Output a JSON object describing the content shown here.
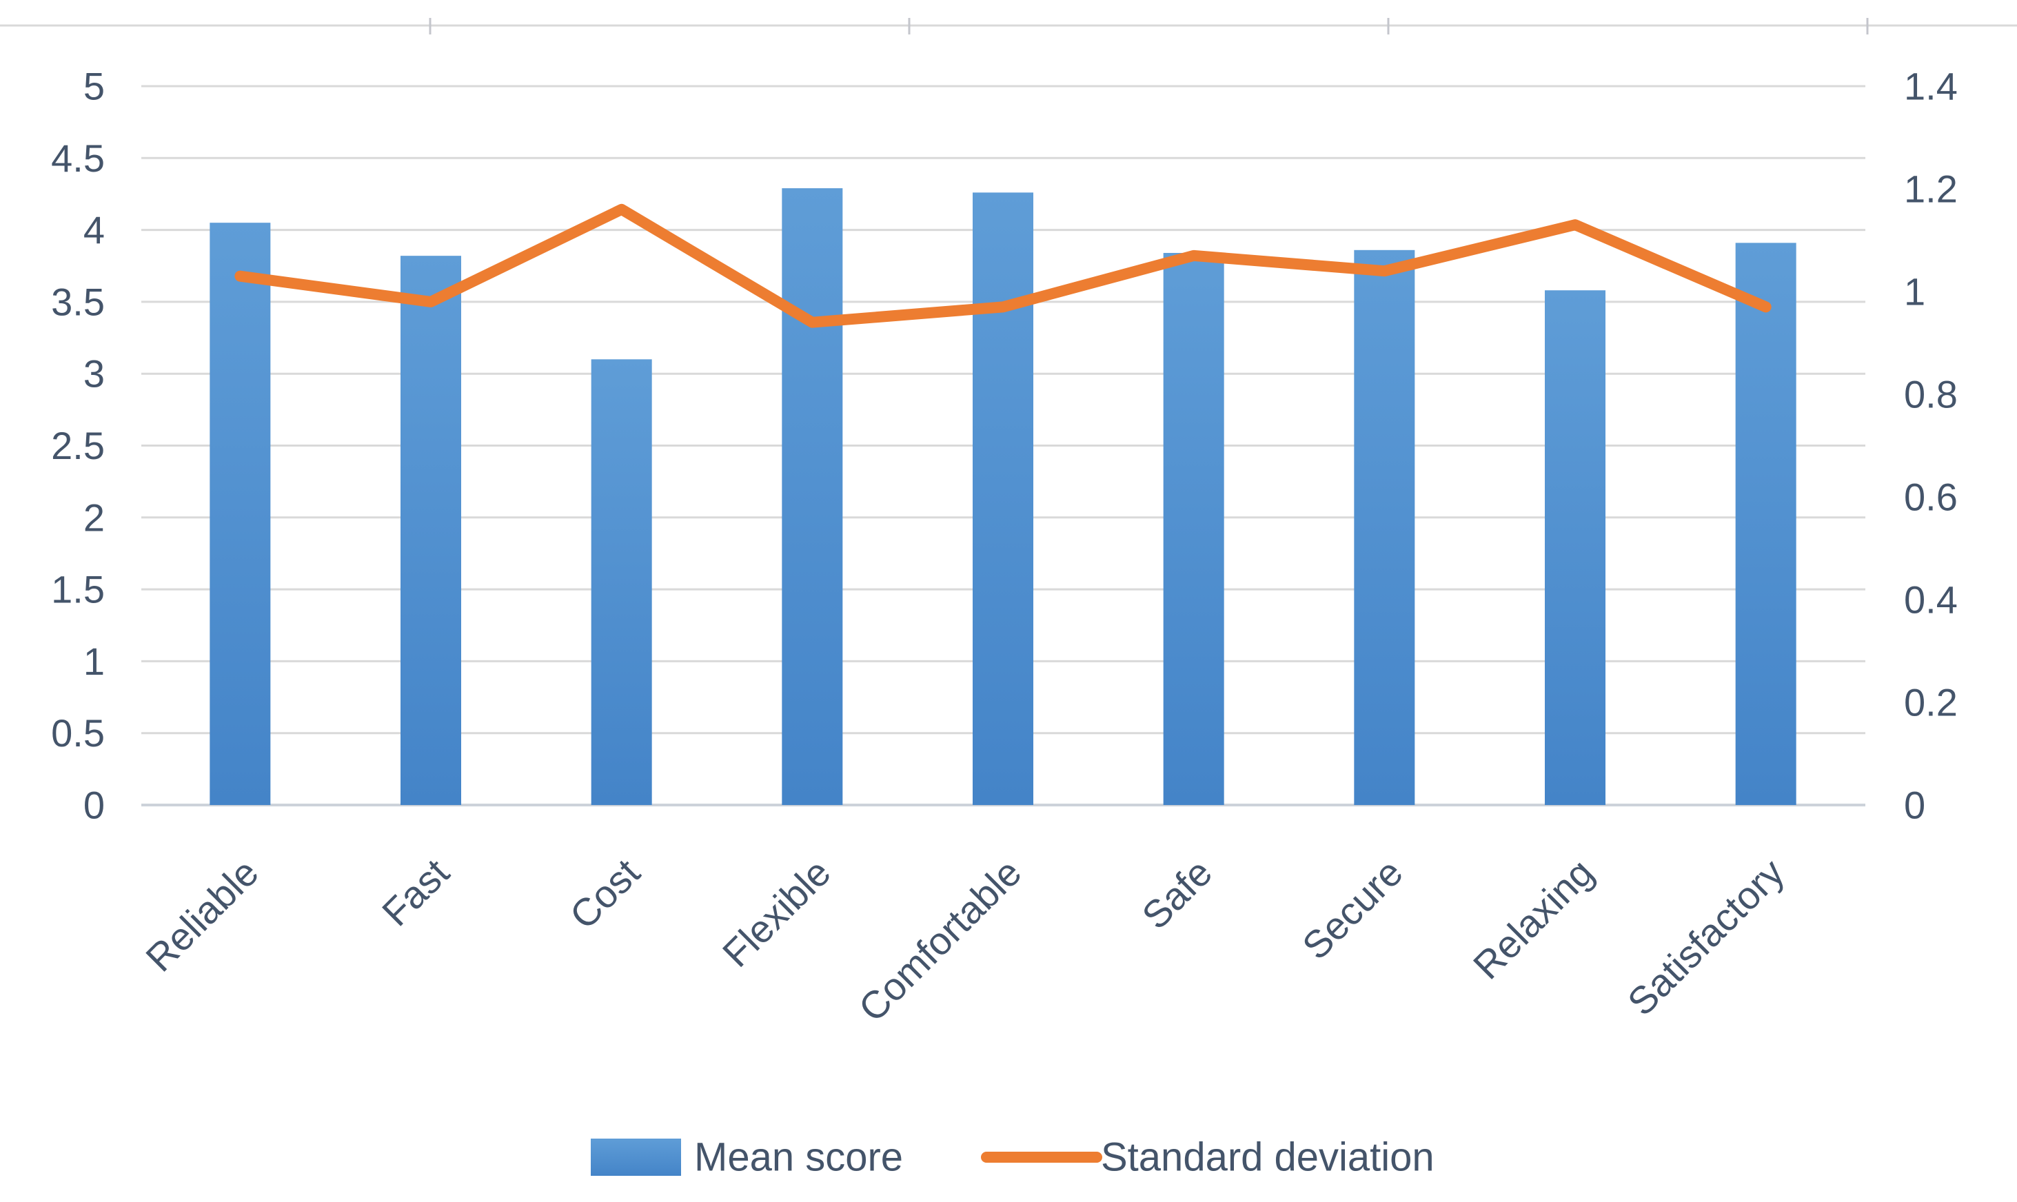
{
  "chart_data": {
    "type": "bar",
    "subtype": "combo-bar-line-dual-axis",
    "title": "",
    "categories": [
      "Reliable",
      "Fast",
      "Cost",
      "Flexible",
      "Comfortable",
      "Safe",
      "Secure",
      "Relaxing",
      "Satisfactory"
    ],
    "series": [
      {
        "name": "Mean score",
        "type": "bar",
        "axis": "primary",
        "values": [
          4.05,
          3.82,
          3.1,
          4.29,
          4.26,
          3.84,
          3.86,
          3.58,
          3.91
        ]
      },
      {
        "name": "Standard deviation",
        "type": "line",
        "axis": "secondary",
        "values": [
          1.03,
          0.98,
          1.16,
          0.94,
          0.97,
          1.07,
          1.04,
          1.13,
          0.97
        ]
      }
    ],
    "primary_axis": {
      "min": 0,
      "max": 5,
      "step": 0.5,
      "tick_labels": [
        "0",
        "0.5",
        "1",
        "1.5",
        "2",
        "2.5",
        "3",
        "3.5",
        "4",
        "4.5",
        "5"
      ]
    },
    "secondary_axis": {
      "min": 0,
      "max": 1.4,
      "step": 0.2,
      "tick_labels": [
        "0",
        "0.2",
        "0.4",
        "0.6",
        "0.8",
        "1",
        "1.2",
        "1.4"
      ]
    },
    "grid": true,
    "legend_position": "bottom"
  },
  "legend": {
    "mean_label": "Mean score",
    "sd_label": "Standard deviation"
  },
  "colors": {
    "bar_top": "#5f9dd7",
    "bar_bottom": "#4484c8",
    "line": "#ed7d31",
    "text": "#44546a",
    "gridline": "#d9d9d9",
    "axis_line": "#ccd2da",
    "top_border": "#d9d9d9",
    "top_tick": "#c4c6cc",
    "background": "#ffffff"
  }
}
